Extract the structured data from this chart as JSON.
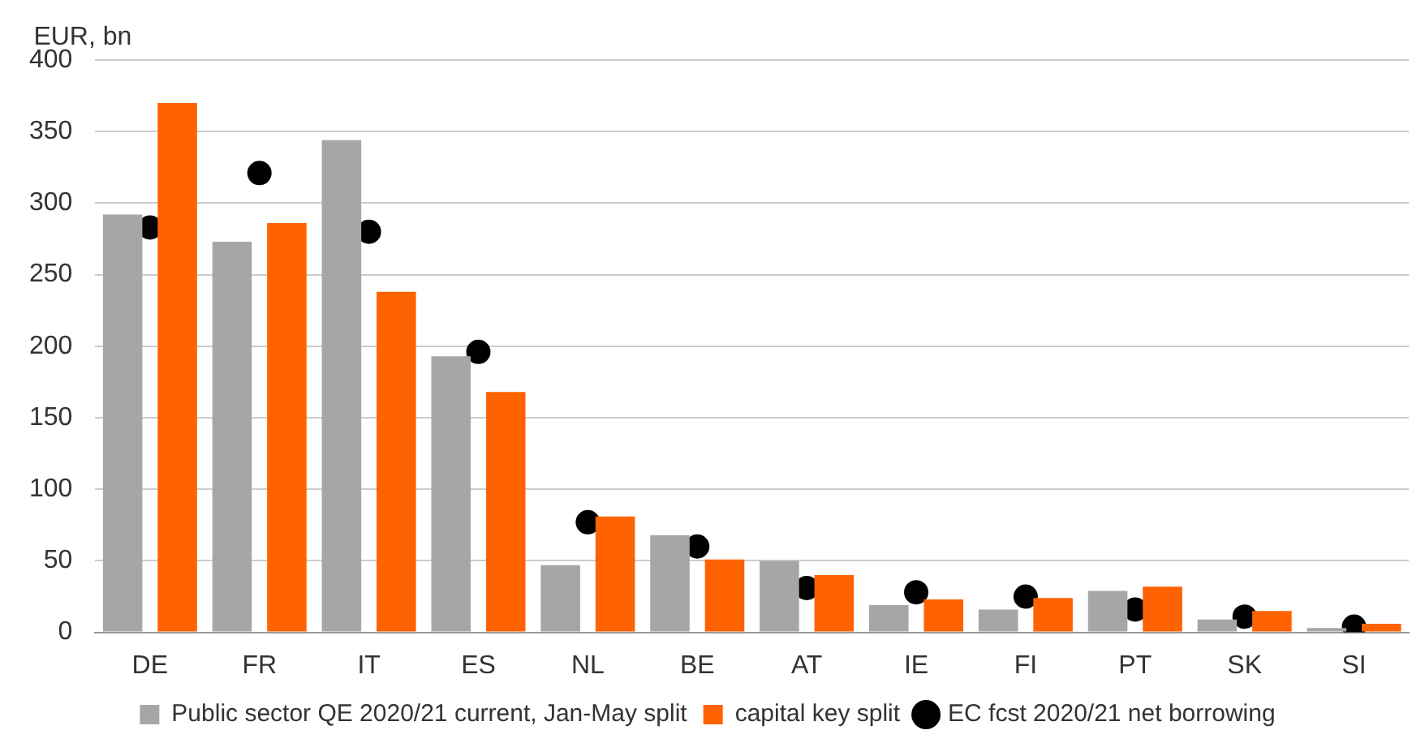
{
  "chart_data": {
    "type": "bar",
    "ylabel": "EUR, bn",
    "categories": [
      "DE",
      "FR",
      "IT",
      "ES",
      "NL",
      "BE",
      "AT",
      "IE",
      "FI",
      "PT",
      "SK",
      "SI"
    ],
    "series": [
      {
        "name": "Public sector QE 2020/21 current, Jan-May split",
        "color": "#a6a6a6",
        "values": [
          292,
          273,
          344,
          193,
          47,
          68,
          50,
          19,
          16,
          29,
          9,
          3
        ]
      },
      {
        "name": "capital key split",
        "color": "#ff6200",
        "values": [
          370,
          286,
          238,
          168,
          81,
          51,
          40,
          23,
          24,
          32,
          15,
          6
        ]
      },
      {
        "name": "EC fcst 2020/21 net borrowing",
        "type": "scatter",
        "color": "#000000",
        "x": [
          "DE",
          "FR",
          "IT",
          "ES",
          "NL",
          "BE",
          "AT",
          "IE",
          "FI",
          "PT",
          "SK",
          "SI"
        ],
        "values": [
          283,
          321,
          280,
          196,
          77,
          60,
          31,
          28,
          25,
          16,
          11,
          4
        ]
      }
    ],
    "ylim": [
      0,
      400
    ],
    "yticks": [
      0,
      50,
      100,
      150,
      200,
      250,
      300,
      350,
      400
    ],
    "grid": "y",
    "legend": "bottom",
    "marker": "circle"
  }
}
